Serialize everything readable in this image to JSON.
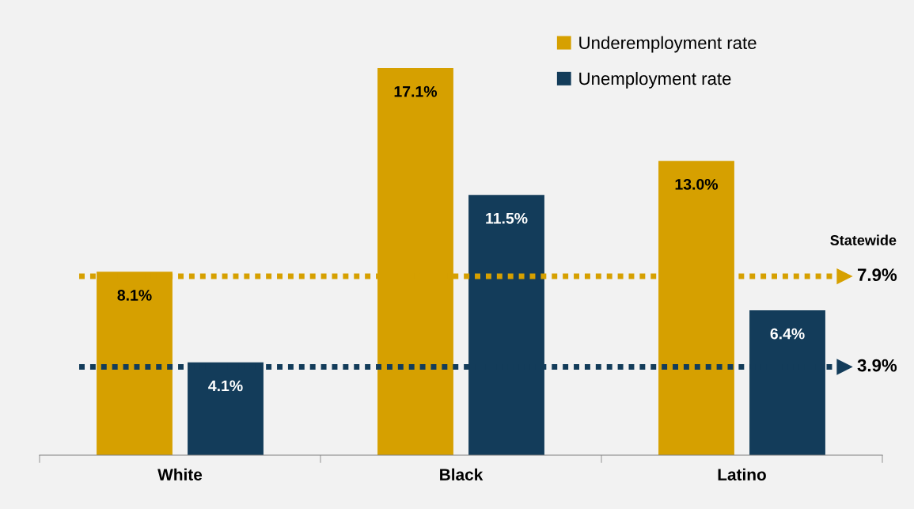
{
  "chart_data": {
    "type": "bar",
    "categories": [
      "White",
      "Black",
      "Latino"
    ],
    "series": [
      {
        "name": "Underemployment rate",
        "color": "#d6a000",
        "values": [
          8.1,
          17.1,
          13.0
        ],
        "value_labels": [
          "8.1%",
          "17.1%",
          "13.0%"
        ]
      },
      {
        "name": "Unemployment rate",
        "color": "#133c5a",
        "values": [
          4.1,
          11.5,
          6.4
        ],
        "value_labels": [
          "4.1%",
          "11.5%",
          "6.4%"
        ]
      }
    ],
    "legend": "top right",
    "grid": false,
    "tick_labels": "x",
    "ref_lines": [
      {
        "axis": "y",
        "value": 7.9,
        "label": "7.9%",
        "color": "#d6a000",
        "line_style": "dotted"
      },
      {
        "axis": "y",
        "value": 3.9,
        "label": "3.9%",
        "color": "#133c5a",
        "line_style": "dotted"
      }
    ],
    "annotations": [
      "Statewide"
    ]
  }
}
